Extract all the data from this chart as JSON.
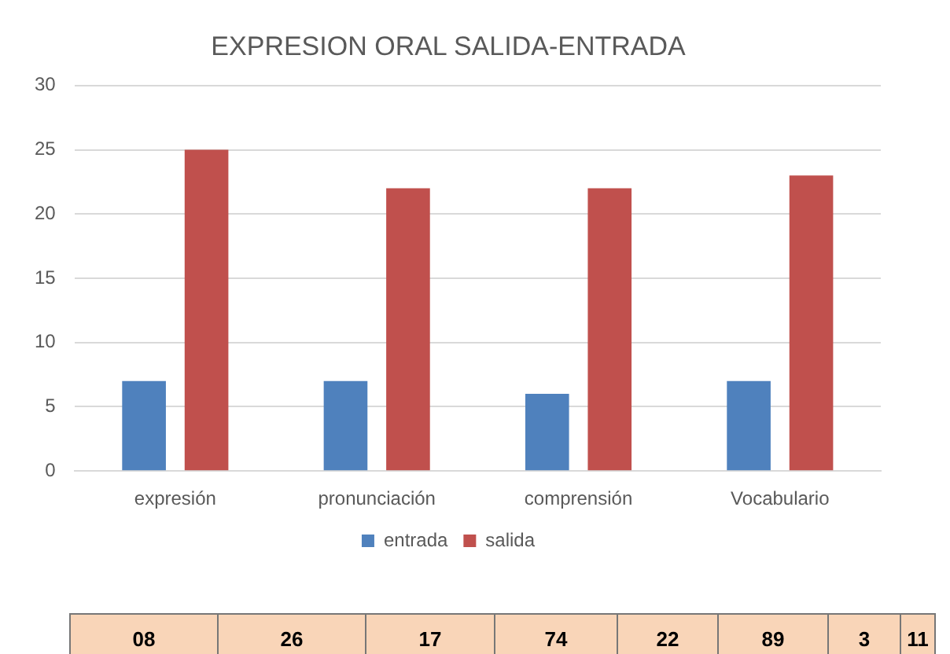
{
  "chart_data": {
    "type": "bar",
    "title": "EXPRESION ORAL SALIDA-ENTRADA",
    "categories": [
      "expresión",
      "pronunciación",
      "comprensión",
      "Vocabulario"
    ],
    "series": [
      {
        "name": "entrada",
        "color": "#4f81bd",
        "values": [
          7,
          7,
          6,
          7
        ]
      },
      {
        "name": "salida",
        "color": "#c0504d",
        "values": [
          25,
          22,
          22,
          23
        ]
      }
    ],
    "ylim": [
      0,
      30
    ],
    "yticks": [
      0,
      5,
      10,
      15,
      20,
      25,
      30
    ],
    "grid": "y",
    "legend": "bottom",
    "annotations": [
      "08",
      "26",
      "17",
      "74",
      "22",
      "89",
      "3",
      "11"
    ]
  }
}
